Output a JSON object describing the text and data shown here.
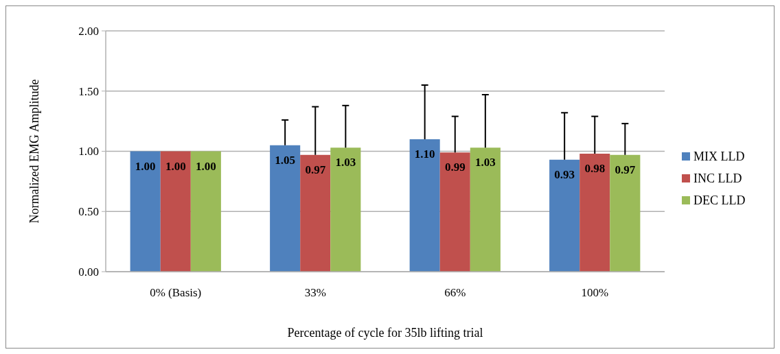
{
  "chart_data": {
    "type": "bar",
    "xlabel": "Percentage of cycle for 35lb lifting trial",
    "ylabel": "Normalized EMG Amplitude",
    "categories": [
      "0% (Basis)",
      "33%",
      "66%",
      "100%"
    ],
    "series": [
      {
        "name": "MIX LLD",
        "color": "#4f81bd",
        "values": [
          1.0,
          1.05,
          1.1,
          0.93
        ],
        "value_labels": [
          "1.00",
          "1.05",
          "1.10",
          "0.93"
        ],
        "errors": [
          null,
          [
            1.05,
            1.26
          ],
          [
            1.1,
            1.55
          ],
          [
            0.93,
            1.32
          ]
        ]
      },
      {
        "name": "INC LLD",
        "color": "#c0504d",
        "values": [
          1.0,
          0.97,
          0.99,
          0.98
        ],
        "value_labels": [
          "1.00",
          "0.97",
          "0.99",
          "0.98"
        ],
        "errors": [
          null,
          [
            0.97,
            1.37
          ],
          [
            0.99,
            1.29
          ],
          [
            0.98,
            1.29
          ]
        ]
      },
      {
        "name": "DEC LLD",
        "color": "#9bbb59",
        "values": [
          1.0,
          1.03,
          1.03,
          0.97
        ],
        "value_labels": [
          "1.00",
          "1.03",
          "1.03",
          "0.97"
        ],
        "errors": [
          null,
          [
            1.03,
            1.38
          ],
          [
            1.03,
            1.47
          ],
          [
            0.97,
            1.23
          ]
        ]
      }
    ],
    "ylim": [
      0,
      2
    ],
    "yticks": [
      {
        "value": 0,
        "label": "0.00"
      },
      {
        "value": 0.5,
        "label": "0.50"
      },
      {
        "value": 1,
        "label": "1.00"
      },
      {
        "value": 1.5,
        "label": "1.50"
      },
      {
        "value": 2,
        "label": "2.00"
      }
    ],
    "grid": "y",
    "legend": "right"
  }
}
